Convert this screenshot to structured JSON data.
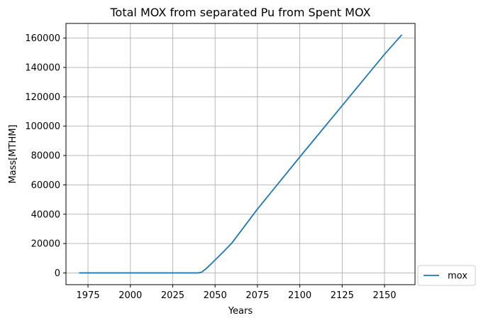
{
  "chart_data": {
    "type": "line",
    "title": "Total MOX from separated Pu from Spent MOX",
    "xlabel": "Years",
    "ylabel": "Mass[MTHM]",
    "xlim": [
      1962,
      2168
    ],
    "ylim": [
      -8000,
      170000
    ],
    "xticks": [
      1975,
      2000,
      2025,
      2050,
      2075,
      2100,
      2125,
      2150
    ],
    "yticks": [
      0,
      20000,
      40000,
      60000,
      80000,
      100000,
      120000,
      140000,
      160000
    ],
    "grid": true,
    "legend_position": "lower-right-outside",
    "series": [
      {
        "name": "mox",
        "color": "#1f77b4",
        "x": [
          1970,
          1980,
          1990,
          2000,
          2010,
          2020,
          2030,
          2040,
          2042,
          2044,
          2046,
          2048,
          2050,
          2055,
          2060,
          2075,
          2100,
          2125,
          2150,
          2160
        ],
        "y": [
          0,
          0,
          0,
          0,
          0,
          0,
          0,
          0,
          500,
          2200,
          4300,
          6500,
          8800,
          14500,
          20500,
          43500,
          79000,
          114000,
          149000,
          162000
        ]
      }
    ]
  }
}
